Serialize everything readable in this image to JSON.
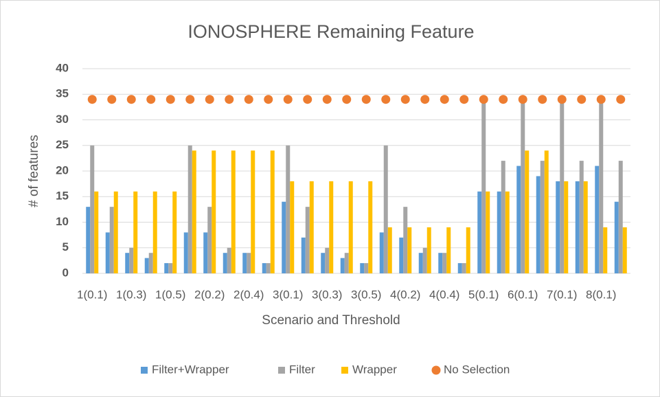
{
  "chart_data": {
    "type": "bar",
    "title": "IONOSPHERE Remaining Feature",
    "x_label": "Scenario and Threshold",
    "y_label": "# of features",
    "categories": [
      "1(0.1)",
      null,
      "1(0.3)",
      null,
      "1(0.5)",
      null,
      "2(0.2)",
      null,
      "2(0.4)",
      null,
      "3(0.1)",
      null,
      "3(0.3)",
      null,
      "3(0.5)",
      null,
      "4(0.2)",
      null,
      "4(0.4)",
      null,
      "5(0.1)",
      null,
      "6(0.1)",
      null,
      "7(0.1)",
      null,
      "8(0.1)",
      null
    ],
    "series": [
      {
        "name": "Filter+Wrapper",
        "color": "#5b9bd5",
        "values": [
          13,
          8,
          4,
          3,
          2,
          8,
          8,
          4,
          4,
          2,
          14,
          7,
          4,
          3,
          2,
          8,
          7,
          4,
          4,
          2,
          16,
          16,
          21,
          19,
          18,
          18,
          21,
          14
        ]
      },
      {
        "name": "Filter",
        "color": "#a5a5a5",
        "values": [
          25,
          13,
          5,
          4,
          2,
          25,
          13,
          5,
          4,
          2,
          25,
          13,
          5,
          4,
          2,
          25,
          13,
          5,
          4,
          2,
          34,
          22,
          34,
          22,
          34,
          22,
          34,
          22
        ]
      },
      {
        "name": "Wrapper",
        "color": "#ffc000",
        "values": [
          16,
          16,
          16,
          16,
          16,
          24,
          24,
          24,
          24,
          24,
          18,
          18,
          18,
          18,
          18,
          9,
          9,
          9,
          9,
          9,
          16,
          16,
          24,
          24,
          18,
          18,
          9,
          9
        ]
      },
      {
        "name": "No Selection",
        "color": "#ed7d31",
        "marker": "circle",
        "values": [
          34,
          34,
          34,
          34,
          34,
          34,
          34,
          34,
          34,
          34,
          34,
          34,
          34,
          34,
          34,
          34,
          34,
          34,
          34,
          34,
          34,
          34,
          34,
          34,
          34,
          34,
          34,
          34
        ]
      }
    ],
    "ylim": [
      0,
      40
    ],
    "yticks": [
      0,
      5,
      10,
      15,
      20,
      25,
      30,
      35,
      40
    ],
    "grid": true,
    "legend": "bottom"
  }
}
